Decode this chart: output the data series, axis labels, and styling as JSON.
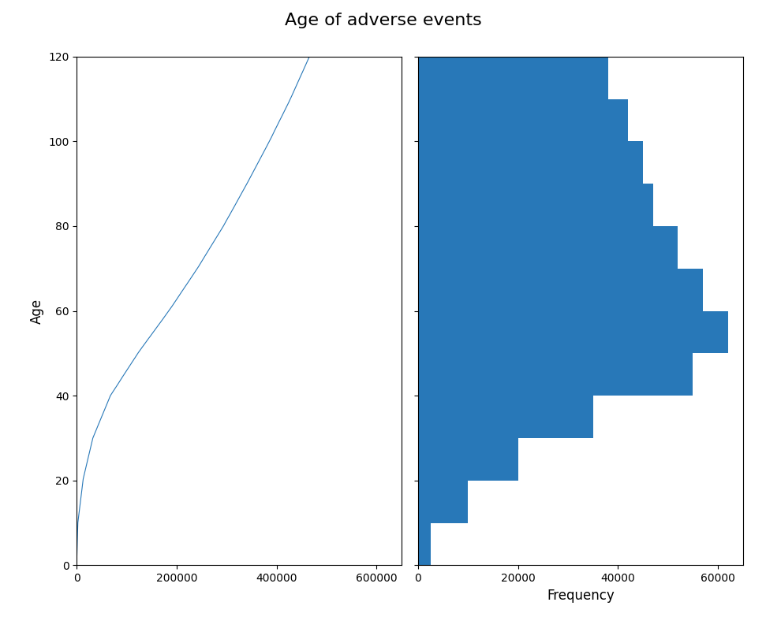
{
  "title": "Age of adverse events",
  "ylabel_left": "Age",
  "xlabel_right": "Frequency",
  "line_color": "#2878b8",
  "hist_color": "#2878b8",
  "xlim_left": [
    0,
    650000
  ],
  "ylim": [
    0,
    120
  ],
  "xlim_right": [
    0,
    65000
  ],
  "hist_bin_edges": [
    0,
    10,
    20,
    30,
    40,
    50,
    60,
    70,
    80,
    90,
    100,
    110,
    120
  ],
  "hist_counts": [
    2500,
    10000,
    20000,
    35000,
    55000,
    62000,
    57000,
    52000,
    47000,
    45000,
    42000,
    38000
  ],
  "title_fontsize": 16,
  "tick_fontsize": 10,
  "label_fontsize": 12,
  "left_xticks": [
    0,
    200000,
    400000,
    600000
  ],
  "right_xticks": [
    0,
    20000,
    40000,
    60000
  ],
  "yticks": [
    0,
    20,
    40,
    60,
    80,
    100,
    120
  ]
}
